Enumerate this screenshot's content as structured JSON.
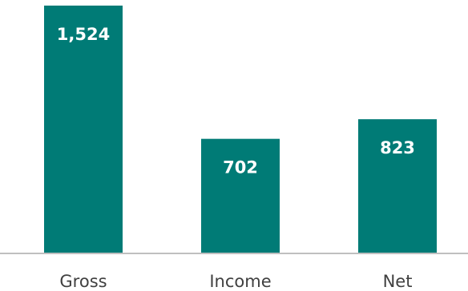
{
  "chart_data": {
    "type": "bar",
    "categories": [
      "Gross",
      "Income",
      "Net"
    ],
    "values": [
      1524,
      702,
      823
    ],
    "value_labels": [
      "1,524",
      "702",
      "823"
    ],
    "title": "",
    "xlabel": "",
    "ylabel": "",
    "ylim": [
      0,
      1524
    ],
    "grid": false,
    "legend": "none",
    "bar_color": "#007b76",
    "axis_color": "#bfbfbf"
  }
}
